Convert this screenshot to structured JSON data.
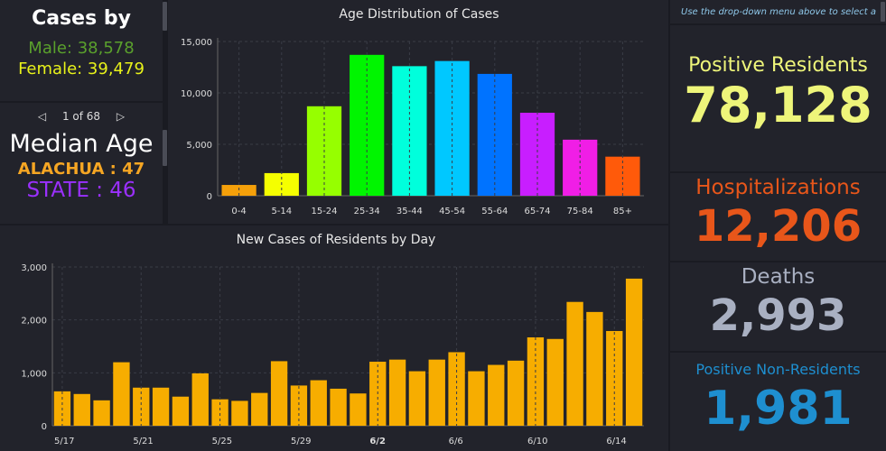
{
  "left": {
    "cases_title": "Cases by",
    "male": "Male: 38,578",
    "female": "Female: 39,479",
    "pager": "1 of 68",
    "median_title": "Median Age",
    "county": "ALACHUA : 47",
    "state": "STATE : 46",
    "colors": {
      "male": "#5aa02c",
      "female": "#e8f21a",
      "county": "#f5a623",
      "state": "#9b30ff"
    }
  },
  "right": {
    "hint": "Use the drop-down menu above to select a",
    "positive_label": "Positive Residents",
    "positive_value": "78,128",
    "hosp_label": "Hospitalizations",
    "hosp_value": "12,206",
    "deaths_label": "Deaths",
    "deaths_value": "2,993",
    "nonres_label": "Positive Non-Residents",
    "nonres_value": "1,981",
    "colors": {
      "positive": "#eef57a",
      "hosp": "#e8561a",
      "deaths": "#a9b0c2",
      "nonres": "#1e8fd0"
    }
  },
  "chart_data": [
    {
      "type": "bar",
      "title": "Age Distribution of Cases",
      "categories": [
        "0-4",
        "5-14",
        "15-24",
        "25-34",
        "35-44",
        "45-54",
        "55-64",
        "65-74",
        "75-84",
        "85+"
      ],
      "values": [
        1050,
        2200,
        8700,
        13700,
        12600,
        13100,
        11850,
        8070,
        5450,
        3800
      ],
      "colors": [
        "#f5a00a",
        "#f5ff00",
        "#96ff00",
        "#00f500",
        "#00ffdc",
        "#00c8ff",
        "#0073ff",
        "#c81eff",
        "#f01ee6",
        "#ff5a0a"
      ],
      "ylim": [
        0,
        15000
      ],
      "yticks": [
        "0",
        "5,000",
        "10,000",
        "15,000"
      ],
      "grid": true
    },
    {
      "type": "bar",
      "title": "New Cases of Residents by Day",
      "categories": [
        "5/17",
        "5/18",
        "5/19",
        "5/20",
        "5/21",
        "5/22",
        "5/23",
        "5/24",
        "5/25",
        "5/26",
        "5/27",
        "5/28",
        "5/29",
        "5/30",
        "5/31",
        "6/1",
        "6/2",
        "6/3",
        "6/4",
        "6/5",
        "6/6",
        "6/7",
        "6/8",
        "6/9",
        "6/10",
        "6/11",
        "6/12",
        "6/13",
        "6/14",
        "6/15"
      ],
      "values": [
        650,
        600,
        480,
        1200,
        720,
        720,
        550,
        990,
        500,
        470,
        620,
        1220,
        760,
        860,
        700,
        610,
        1210,
        1250,
        1030,
        1250,
        1390,
        1030,
        1150,
        1230,
        1670,
        1640,
        2340,
        2150,
        1790,
        2780
      ],
      "xticks": [
        "5/17",
        "5/21",
        "5/25",
        "5/29",
        "6/2",
        "6/6",
        "6/10",
        "6/14"
      ],
      "color": "#f7ad00",
      "ylim": [
        0,
        3000
      ],
      "yticks": [
        "0",
        "1,000",
        "2,000",
        "3,000"
      ],
      "grid": true
    }
  ]
}
